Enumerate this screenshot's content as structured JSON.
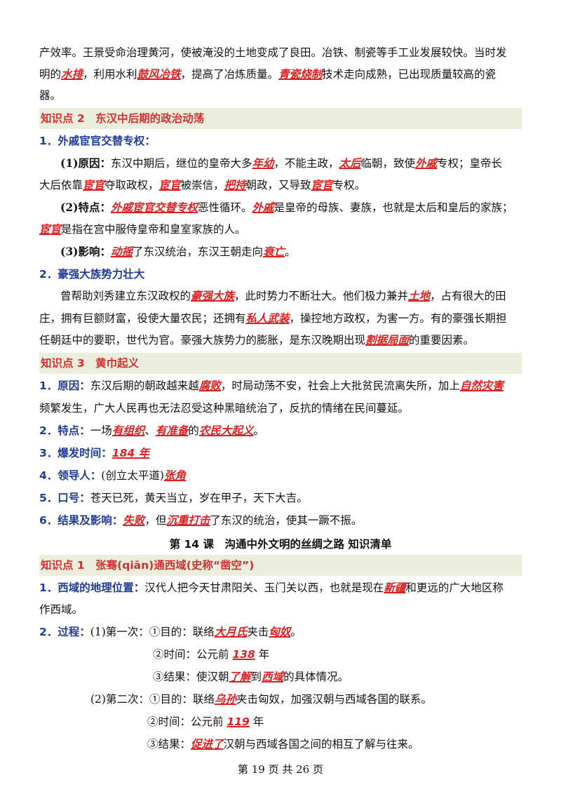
{
  "intro": {
    "l1": "产效率。王景受命治理黄河，使被淹没的土地变成了良田。冶铁、制瓷等手工业发展较快。当时发",
    "l2a": "明的",
    "l2r1": "水排",
    "l2b": "，利用水利",
    "l2r2": "鼓风冶铁",
    "l2c": "，提高了冶炼质量。",
    "l2r3": "青瓷烧制",
    "l2d": "技术走向成熟，已出现质量较高的瓷",
    "l3": "器。"
  },
  "kp2": {
    "title": "知识点 2　东汉中后期的政治动荡",
    "s1": "1．外戚宦官交替专权：",
    "r1_label": "(1)原因：",
    "r1a": "东汉中期后，继位的皇帝大多",
    "r1r1": "年幼",
    "r1b": "，不能主政，",
    "r1r2": "太后",
    "r1c": "临朝，致使",
    "r1r3": "外戚",
    "r1d": "专权；皇帝长",
    "r2a": "大后依靠",
    "r2r1": "宦官",
    "r2b": "夺取政权，",
    "r2r2": "宦官",
    "r2c": "被崇信，",
    "r2r3": "把持",
    "r2d": "朝政，又导致",
    "r2r4": "宦官",
    "r2e": "专权。",
    "t1_label": "(2)特点：",
    "t1r1": "外戚宦官交替专权",
    "t1a": "恶性循环。",
    "t1r2": "外戚",
    "t1b": "是皇帝的母族、妻族，也就是太后和皇后的家族；",
    "t2r1": "宦官",
    "t2a": "是指在宫中服侍皇帝和皇室家族的人。",
    "y_label": "(3)影响：",
    "yr1": "动摇",
    "ya": "了东汉统治，东汉王朝走向",
    "yr2": "衰亡",
    "yb": "。",
    "s2": "2．豪强大族势力壮大",
    "h1a": "曾帮助刘秀建立东汉政权的",
    "h1r1": "豪强大族",
    "h1b": "，此时势力不断壮大。他们极力兼并",
    "h1r2": "土地",
    "h1c": "，占有很大的田",
    "h2a": "庄，拥有巨额财富，役使大量农民；还拥有",
    "h2r1": "私人武装",
    "h2b": "，操控地方政权，为害一方。有的豪强长期担",
    "h3a": "任朝廷中的要职，世代为官。豪强大族势力的膨胀，是东汉晚期出现",
    "h3r1": "割据局面",
    "h3b": "的重要因素。"
  },
  "kp3": {
    "title": "知识点 3　黄巾起义",
    "c1_label": "1．原因：",
    "c1a": "东汉后期的朝政越来越",
    "c1r1": "腐败",
    "c1b": "，时局动荡不安，社会上大批贫民流离失所，加上",
    "c1r2": "自然灾害",
    "c2": "频繁发生，广大人民再也无法忍受这种黑暗统治了，反抗的情绪在民间蔓延。",
    "f_label": "2．特点：",
    "fa": "一场",
    "fr1": "有组织",
    "fb": "、",
    "fr2": "有准备",
    "fc": "的",
    "fr3": "农民大起义",
    "fd": "。",
    "time_label": "3．爆发时间：",
    "time_r": "184 年",
    "lead_label": "4．领导人：",
    "lead_a": "(创立太平道)",
    "lead_r": "张角",
    "slogan_label": "5．口号：",
    "slogan": "苍天已死，黄天当立，岁在甲子，天下大吉。",
    "res_label": "6．结果及影响：",
    "res_r1": "失败",
    "res_a": "，但",
    "res_r2": "沉重打击",
    "res_b": "了东汉的统治，使其一蹶不振。"
  },
  "lesson14": {
    "title": "第 14 课　沟通中外文明的丝绸之路  知识清单"
  },
  "kp1": {
    "title": "知识点 1　张骞(qiān)通西域(史称“凿空”)",
    "g_label": "1．西域的地理位置：",
    "g1a": "汉代人把今天甘肃阳关、玉门关以西，也就是现在",
    "g1r1": "新疆",
    "g1b": "和更远的广大地区称",
    "g2": "作西域。",
    "p_label": "2．过程：",
    "p1a": "(1)第一次：①目的：联络",
    "p1r1": "大月氏",
    "p1b": "夹击",
    "p1r2": "匈奴",
    "p1c": "。",
    "p2a": "②时间：公元前 ",
    "p2r": "138",
    "p2b": " 年",
    "p3a": "③结果：使汉朝",
    "p3r1": "了解",
    "p3b": "到",
    "p3r2": "西域",
    "p3c": "的具体情况。",
    "q1a": "(2)第二次：①目的：联络",
    "q1r1": "乌孙",
    "q1b": "夹击匈奴，加强汉朝与西域各国的联系。",
    "q2a": "②时间：公元前 ",
    "q2r": "119",
    "q2b": " 年",
    "q3a": "③结果：",
    "q3r1": "促进了",
    "q3b": "汉朝与西域各国之间的相互了解与往来。"
  },
  "footer": {
    "page": "第 19 页 共 26 页"
  }
}
